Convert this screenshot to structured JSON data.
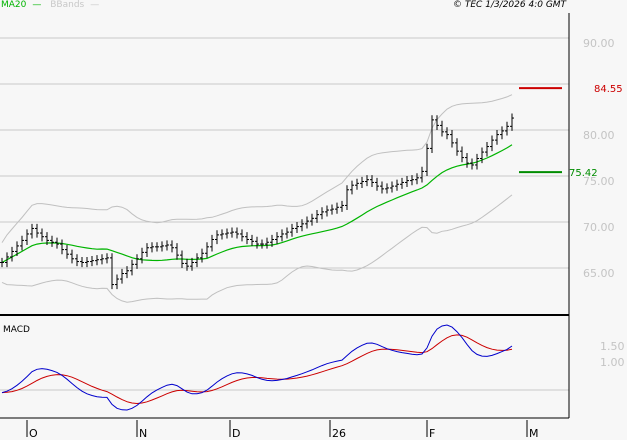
{
  "header": {
    "legend": [
      {
        "label": "MA20",
        "color": "#00b400"
      },
      {
        "label": "BBands",
        "color": "#c8c8c8"
      }
    ],
    "copyright": "© TEC 1/3/2026 4:0 GMT"
  },
  "chart_data": [
    {
      "type": "bar",
      "subtype": "ohlc",
      "ylim": [
        60,
        92
      ],
      "grid": true,
      "y_ticks": [
        "90.00",
        "80.00",
        "75.00",
        "70.00",
        "65.00"
      ],
      "y_tick_values": [
        90,
        80,
        75,
        70,
        65
      ],
      "x_tick_labels": [
        "O",
        "N",
        "D",
        "26",
        "F",
        "M"
      ],
      "overlays": [
        "MA20",
        "BBands"
      ],
      "levels": [
        {
          "label": "84.55",
          "value": 84.55,
          "color": "#cc0000"
        },
        {
          "label": "75.42",
          "value": 75.42,
          "color": "#008c00"
        }
      ],
      "closes": [
        65.6,
        66.2,
        66.8,
        67.4,
        68.0,
        68.7,
        69.3,
        68.8,
        68.4,
        68.0,
        67.8,
        67.6,
        67.0,
        66.5,
        66.0,
        65.7,
        65.6,
        65.7,
        65.8,
        65.9,
        66.0,
        66.1,
        63.2,
        63.8,
        64.4,
        64.7,
        65.4,
        66.0,
        66.7,
        67.2,
        67.3,
        67.3,
        67.4,
        67.5,
        67.2,
        66.4,
        65.5,
        65.2,
        65.6,
        66.1,
        66.6,
        67.3,
        68.1,
        68.6,
        68.7,
        68.8,
        68.9,
        68.7,
        68.4,
        68.1,
        67.9,
        67.6,
        67.6,
        67.8,
        68.1,
        68.4,
        68.7,
        68.9,
        69.3,
        69.5,
        69.8,
        70.1,
        70.4,
        70.8,
        71.1,
        71.3,
        71.4,
        71.6,
        71.8,
        73.5,
        74.0,
        74.2,
        74.4,
        74.6,
        74.3,
        73.9,
        73.6,
        73.7,
        73.9,
        74.1,
        74.3,
        74.5,
        74.6,
        74.8,
        75.5,
        78.0,
        81.1,
        80.5,
        79.8,
        79.5,
        78.6,
        77.7,
        77.0,
        76.4,
        76.2,
        76.9,
        77.6,
        78.2,
        78.9,
        79.5,
        79.9,
        80.4,
        81.3
      ]
    },
    {
      "type": "line",
      "title": "MACD",
      "y_ticks": [
        "1.50",
        "1.00"
      ],
      "series_colors": {
        "macd": "#0000cc",
        "signal": "#cc0000"
      }
    }
  ]
}
